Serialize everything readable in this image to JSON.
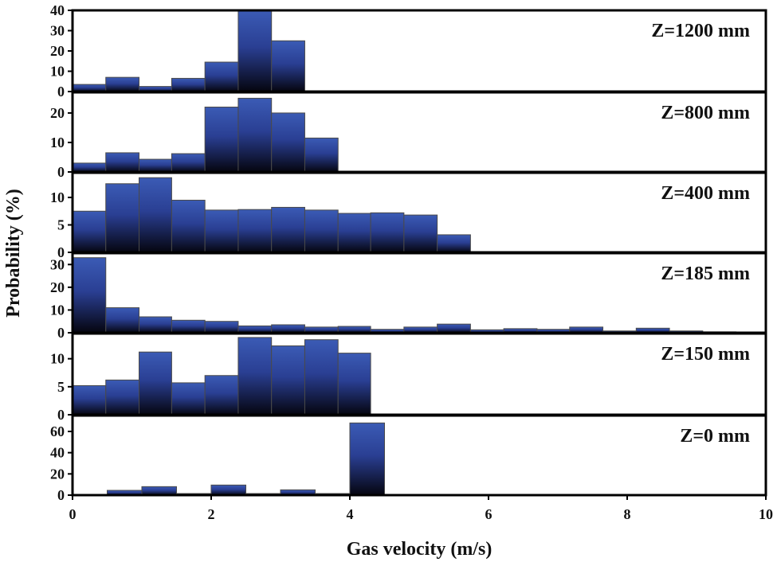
{
  "chart_data": {
    "type": "bar",
    "xlabel": "Gas velocity (m/s)",
    "ylabel": "Probability (%)",
    "xlim": [
      0,
      10
    ],
    "xticks": [
      0,
      2,
      4,
      6,
      8,
      10
    ],
    "colors": {
      "bar_top": "#3b5bb5",
      "bar_mid": "#2a3f93",
      "bar_bottom": "#05050f",
      "bar_edge": "#4a4a4a",
      "axis": "#000000"
    },
    "panels": [
      {
        "label": "Z=1200 mm",
        "ylim": [
          0,
          40
        ],
        "yticks": [
          0,
          10,
          20,
          30,
          40
        ],
        "bins": [
          {
            "x0": 0.0,
            "x1": 0.48,
            "value": 3.5
          },
          {
            "x0": 0.48,
            "x1": 0.96,
            "value": 7.0
          },
          {
            "x0": 0.96,
            "x1": 1.43,
            "value": 2.5
          },
          {
            "x0": 1.43,
            "x1": 1.91,
            "value": 6.5
          },
          {
            "x0": 1.91,
            "x1": 2.39,
            "value": 14.5
          },
          {
            "x0": 2.39,
            "x1": 2.87,
            "value": 40.0
          },
          {
            "x0": 2.87,
            "x1": 3.35,
            "value": 25.0
          }
        ]
      },
      {
        "label": "Z=800 mm",
        "ylim": [
          0,
          27
        ],
        "yticks": [
          0,
          10,
          20
        ],
        "bins": [
          {
            "x0": 0.0,
            "x1": 0.48,
            "value": 3.0
          },
          {
            "x0": 0.48,
            "x1": 0.96,
            "value": 6.5
          },
          {
            "x0": 0.96,
            "x1": 1.43,
            "value": 4.3
          },
          {
            "x0": 1.43,
            "x1": 1.91,
            "value": 6.2
          },
          {
            "x0": 1.91,
            "x1": 2.39,
            "value": 22.0
          },
          {
            "x0": 2.39,
            "x1": 2.87,
            "value": 25.0
          },
          {
            "x0": 2.87,
            "x1": 3.35,
            "value": 20.0
          },
          {
            "x0": 3.35,
            "x1": 3.83,
            "value": 11.5
          }
        ]
      },
      {
        "label": "Z=400 mm",
        "ylim": [
          0,
          14.5
        ],
        "yticks": [
          0,
          5,
          10
        ],
        "bins": [
          {
            "x0": 0.0,
            "x1": 0.48,
            "value": 7.5
          },
          {
            "x0": 0.48,
            "x1": 0.96,
            "value": 12.5
          },
          {
            "x0": 0.96,
            "x1": 1.43,
            "value": 13.6
          },
          {
            "x0": 1.43,
            "x1": 1.91,
            "value": 9.5
          },
          {
            "x0": 1.91,
            "x1": 2.39,
            "value": 7.7
          },
          {
            "x0": 2.39,
            "x1": 2.87,
            "value": 7.8
          },
          {
            "x0": 2.87,
            "x1": 3.35,
            "value": 8.2
          },
          {
            "x0": 3.35,
            "x1": 3.83,
            "value": 7.7
          },
          {
            "x0": 3.83,
            "x1": 4.3,
            "value": 7.1
          },
          {
            "x0": 4.3,
            "x1": 4.78,
            "value": 7.2
          },
          {
            "x0": 4.78,
            "x1": 5.26,
            "value": 6.8
          },
          {
            "x0": 5.26,
            "x1": 5.74,
            "value": 3.2
          }
        ]
      },
      {
        "label": "Z=185 mm",
        "ylim": [
          0,
          35
        ],
        "yticks": [
          0,
          10,
          20,
          30
        ],
        "bins": [
          {
            "x0": 0.0,
            "x1": 0.48,
            "value": 33.0
          },
          {
            "x0": 0.48,
            "x1": 0.96,
            "value": 11.0
          },
          {
            "x0": 0.96,
            "x1": 1.43,
            "value": 7.0
          },
          {
            "x0": 1.43,
            "x1": 1.91,
            "value": 5.5
          },
          {
            "x0": 1.91,
            "x1": 2.39,
            "value": 5.0
          },
          {
            "x0": 2.39,
            "x1": 2.87,
            "value": 3.0
          },
          {
            "x0": 2.87,
            "x1": 3.35,
            "value": 3.5
          },
          {
            "x0": 3.35,
            "x1": 3.83,
            "value": 2.5
          },
          {
            "x0": 3.83,
            "x1": 4.3,
            "value": 2.8
          },
          {
            "x0": 4.3,
            "x1": 4.78,
            "value": 1.5
          },
          {
            "x0": 4.78,
            "x1": 5.26,
            "value": 2.5
          },
          {
            "x0": 5.26,
            "x1": 5.74,
            "value": 3.8
          },
          {
            "x0": 5.74,
            "x1": 6.22,
            "value": 1.3
          },
          {
            "x0": 6.22,
            "x1": 6.7,
            "value": 1.8
          },
          {
            "x0": 6.7,
            "x1": 7.17,
            "value": 1.5
          },
          {
            "x0": 7.17,
            "x1": 7.65,
            "value": 2.5
          },
          {
            "x0": 7.65,
            "x1": 8.13,
            "value": 0.8
          },
          {
            "x0": 8.13,
            "x1": 8.61,
            "value": 2.0
          },
          {
            "x0": 8.61,
            "x1": 9.09,
            "value": 0.8
          },
          {
            "x0": 9.09,
            "x1": 9.57,
            "value": 0.4
          }
        ]
      },
      {
        "label": "Z=150 mm",
        "ylim": [
          0,
          14.5
        ],
        "yticks": [
          0,
          5,
          10
        ],
        "bins": [
          {
            "x0": 0.0,
            "x1": 0.48,
            "value": 5.2
          },
          {
            "x0": 0.48,
            "x1": 0.96,
            "value": 6.2
          },
          {
            "x0": 0.96,
            "x1": 1.43,
            "value": 11.2
          },
          {
            "x0": 1.43,
            "x1": 1.91,
            "value": 5.7
          },
          {
            "x0": 1.91,
            "x1": 2.39,
            "value": 7.0
          },
          {
            "x0": 2.39,
            "x1": 2.87,
            "value": 13.8
          },
          {
            "x0": 2.87,
            "x1": 3.35,
            "value": 12.3
          },
          {
            "x0": 3.35,
            "x1": 3.83,
            "value": 13.4
          },
          {
            "x0": 3.83,
            "x1": 4.3,
            "value": 11.0
          }
        ]
      },
      {
        "label": "Z=0 mm",
        "ylim": [
          0,
          75
        ],
        "yticks": [
          0,
          20,
          40,
          60
        ],
        "bins": [
          {
            "x0": 0.5,
            "x1": 1.0,
            "value": 4.5
          },
          {
            "x0": 1.0,
            "x1": 1.5,
            "value": 8.0
          },
          {
            "x0": 1.5,
            "x1": 2.0,
            "value": 1.5
          },
          {
            "x0": 2.0,
            "x1": 2.5,
            "value": 9.5
          },
          {
            "x0": 2.5,
            "x1": 3.0,
            "value": 1.5
          },
          {
            "x0": 3.0,
            "x1": 3.5,
            "value": 5.0
          },
          {
            "x0": 3.5,
            "x1": 4.0,
            "value": 1.5
          },
          {
            "x0": 4.0,
            "x1": 4.5,
            "value": 68.0
          }
        ]
      }
    ]
  }
}
